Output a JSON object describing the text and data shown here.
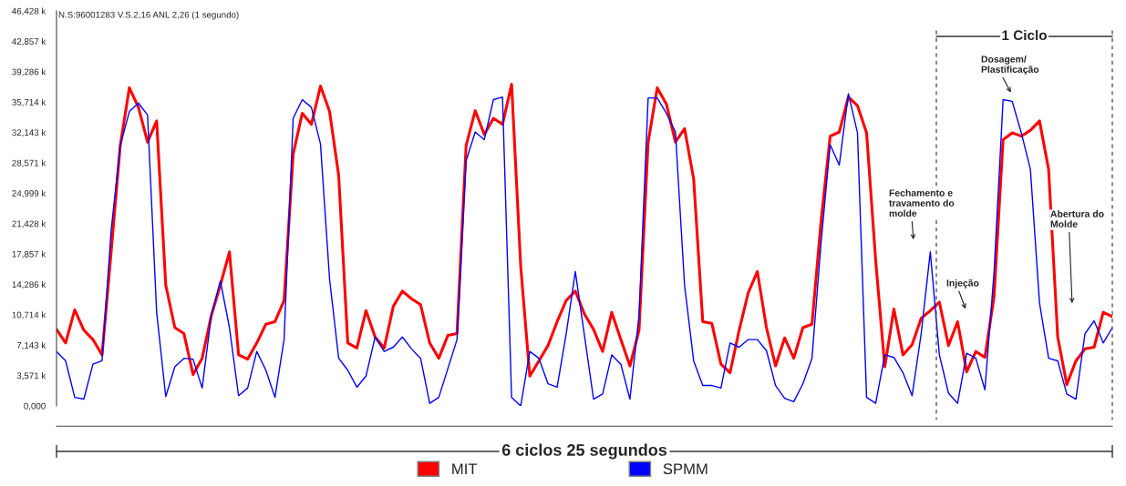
{
  "chart_data": {
    "type": "line",
    "title": "N.S:96001283 V.S.2,16 ANL 2,26 (1 segundo)",
    "categories": [
      null,
      null,
      null,
      null,
      null,
      null,
      null,
      null,
      null,
      null,
      null,
      null,
      null,
      null,
      null,
      null,
      null,
      null,
      null,
      null,
      null,
      null,
      null,
      null,
      null,
      null,
      null,
      null,
      null,
      null,
      null,
      null,
      null,
      null,
      null,
      null,
      null,
      null,
      null,
      null,
      null,
      null,
      null,
      null,
      null,
      null,
      null,
      null,
      null,
      null,
      null,
      null,
      null,
      null,
      null,
      null,
      null,
      null,
      null,
      null,
      null,
      null,
      null,
      null,
      null,
      null,
      null,
      null,
      null,
      null,
      null,
      null,
      null,
      null,
      null,
      null,
      null,
      null,
      null,
      null,
      null,
      null,
      null,
      null,
      null,
      null,
      null,
      null,
      null,
      null,
      null,
      null,
      null,
      null,
      null,
      null,
      null,
      null,
      null,
      null,
      null,
      null,
      null,
      null,
      null,
      null,
      null,
      null,
      null,
      null,
      null,
      null,
      null,
      null,
      null,
      null,
      null
    ],
    "series": [
      {
        "name": "MIT",
        "color": "#ff0000",
        "values": [
          9.0,
          7.4,
          11.3,
          8.9,
          7.8,
          6.0,
          18.1,
          30.6,
          37.4,
          35.1,
          31.0,
          33.5,
          14.2,
          9.2,
          8.5,
          3.7,
          5.6,
          10.6,
          14.2,
          18.1,
          6.0,
          5.5,
          7.4,
          9.6,
          9.9,
          12.4,
          29.6,
          34.4,
          33.1,
          37.6,
          34.6,
          27.1,
          7.4,
          6.8,
          11.2,
          8.1,
          6.8,
          11.7,
          13.5,
          12.6,
          11.9,
          7.4,
          5.6,
          8.3,
          8.5,
          30.6,
          34.7,
          31.9,
          33.8,
          33.1,
          37.8,
          16.4,
          3.5,
          5.3,
          7.1,
          9.9,
          12.4,
          13.5,
          10.8,
          9.0,
          6.4,
          11.0,
          7.8,
          4.7,
          8.9,
          31.0,
          37.4,
          35.5,
          31.0,
          32.6,
          26.7,
          9.9,
          9.7,
          4.9,
          3.9,
          8.9,
          13.3,
          15.8,
          9.2,
          4.7,
          8.0,
          5.6,
          9.2,
          9.6,
          21.7,
          31.7,
          32.2,
          36.3,
          35.3,
          32.1,
          17.1,
          4.6,
          11.4,
          6.0,
          7.2,
          10.3,
          11.2,
          12.2,
          7.1,
          9.9,
          4.0,
          6.4,
          5.7,
          12.8,
          31.3,
          32.1,
          31.7,
          32.4,
          33.5,
          27.8,
          8.1,
          2.5,
          5.3,
          6.7,
          6.9,
          11.0,
          10.5
        ]
      },
      {
        "name": "SPMM",
        "color": "#0000ff",
        "values": [
          6.4,
          5.3,
          1.0,
          0.8,
          4.9,
          5.3,
          20.6,
          30.6,
          34.6,
          35.6,
          34.2,
          11.0,
          1.1,
          4.6,
          5.6,
          5.5,
          2.1,
          10.6,
          14.7,
          9.2,
          1.2,
          2.1,
          6.4,
          4.2,
          1.0,
          7.8,
          33.8,
          36.0,
          35.1,
          30.8,
          14.9,
          5.6,
          4.2,
          2.2,
          3.5,
          8.1,
          6.4,
          6.9,
          8.1,
          6.7,
          5.6,
          0.3,
          1.0,
          4.4,
          7.8,
          28.8,
          32.2,
          31.3,
          36.0,
          36.3,
          1.0,
          0.0,
          6.4,
          5.6,
          2.6,
          2.2,
          8.5,
          15.8,
          8.3,
          0.8,
          1.4,
          6.0,
          4.9,
          0.8,
          10.6,
          36.2,
          36.2,
          34.4,
          32.2,
          14.2,
          5.3,
          2.4,
          2.4,
          2.1,
          7.4,
          6.9,
          7.8,
          7.8,
          6.5,
          2.4,
          0.9,
          0.5,
          2.6,
          5.6,
          19.2,
          30.7,
          28.3,
          36.7,
          32.1,
          1.0,
          0.3,
          6.0,
          5.7,
          3.9,
          1.2,
          8.5,
          18.1,
          6.0,
          1.5,
          0.3,
          6.2,
          5.6,
          1.9,
          15.6,
          36.0,
          35.8,
          32.1,
          27.8,
          12.1,
          5.6,
          5.3,
          1.4,
          0.8,
          8.5,
          10.0,
          7.4,
          9.2
        ]
      }
    ],
    "ylim": [
      0,
      46.428
    ],
    "yticks": [
      {
        "value": 0,
        "label": "0,000"
      },
      {
        "value": 3.571,
        "label": "3,571 k"
      },
      {
        "value": 7.143,
        "label": "7,143 k"
      },
      {
        "value": 10.714,
        "label": "10,714 k"
      },
      {
        "value": 14.286,
        "label": "14,286 k"
      },
      {
        "value": 17.857,
        "label": "17,857 k"
      },
      {
        "value": 21.428,
        "label": "21,428 k"
      },
      {
        "value": 24.999,
        "label": "24,999 k"
      },
      {
        "value": 28.571,
        "label": "28,571 k"
      },
      {
        "value": 32.143,
        "label": "32,143 k"
      },
      {
        "value": 35.714,
        "label": "35,714 k"
      },
      {
        "value": 39.286,
        "label": "39,286 k"
      },
      {
        "value": 42.857,
        "label": "42,857 k"
      },
      {
        "value": 46.428,
        "label": "46,428 k"
      }
    ],
    "tick_labels": "y",
    "legend": "bottom",
    "annotations": [
      "1 Ciclo",
      "6 ciclos 25 segundos",
      "Fechamento e\ntravamento do\nmolde",
      "Injeção",
      "Dosagem/\nPlastificação",
      "Abertura do\nMolde"
    ]
  }
}
